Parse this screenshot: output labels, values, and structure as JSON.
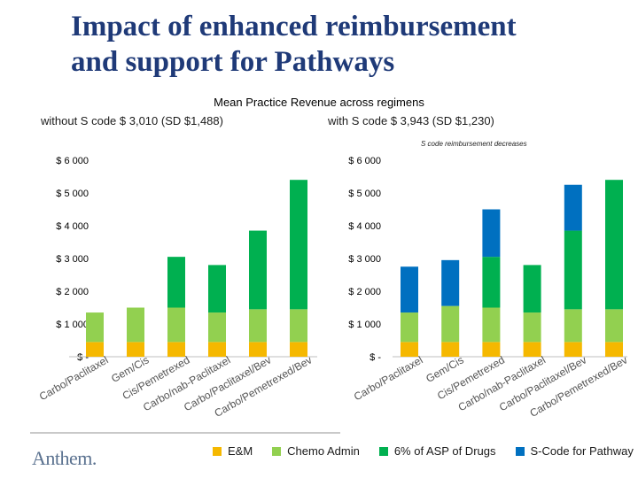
{
  "page": {
    "title_line1": "Impact of enhanced reimbursement",
    "title_line2": "and support for Pathways",
    "subtitle": "Mean Practice Revenue across regimens",
    "left_subtitle": "without S code $ 3,010 (SD $1,488)",
    "right_subtitle": "with S code $ 3,943 (SD $1,230)",
    "note": "S code reimbursement decreases",
    "logo": "Anthem."
  },
  "colors": {
    "em": "#f5b800",
    "chemo": "#92d050",
    "drugs": "#00b050",
    "scode": "#0070c0",
    "title": "#1f3a78"
  },
  "legend": [
    {
      "label": "E&M",
      "color": "#f5b800"
    },
    {
      "label": "Chemo Admin",
      "color": "#92d050"
    },
    {
      "label": "6% of ASP of Drugs",
      "color": "#00b050"
    },
    {
      "label": "S-Code for Pathway",
      "color": "#0070c0"
    }
  ],
  "chart_data": [
    {
      "type": "bar",
      "stacked": true,
      "title": "without S code $ 3,010 (SD $1,488)",
      "categories": [
        "Carbo/Paclitaxel",
        "Gem/Cis",
        "Cis/Pemetrexed",
        "Carbo/nab-Paclitaxel",
        "Carbo/Paclitaxel/Bev",
        "Carbo/Pemetrexed/Bev"
      ],
      "ylim": [
        0,
        6000
      ],
      "yticks": [
        0,
        1000,
        2000,
        3000,
        4000,
        5000,
        6000
      ],
      "ytick_labels": [
        "$ -",
        "$ 1 000",
        "$ 2 000",
        "$ 3 000",
        "$ 4 000",
        "$ 5 000",
        "$ 6 000"
      ],
      "series": [
        {
          "name": "E&M",
          "values": [
            450,
            450,
            450,
            450,
            450,
            450
          ]
        },
        {
          "name": "Chemo Admin",
          "values": [
            900,
            1050,
            1050,
            900,
            1000,
            1000
          ]
        },
        {
          "name": "6% of ASP of Drugs",
          "values": [
            0,
            0,
            1550,
            1450,
            2400,
            3950
          ]
        }
      ]
    },
    {
      "type": "bar",
      "stacked": true,
      "title": "with S code $ 3,943 (SD $1,230)",
      "categories": [
        "Carbo/Paclitaxel",
        "Gem/Cis",
        "Cis/Pemetrexed",
        "Carbo/nab-Paclitaxel",
        "Carbo/Paclitaxel/Bev",
        "Carbo/Pemetrexed/Bev"
      ],
      "ylim": [
        0,
        6000
      ],
      "yticks": [
        0,
        1000,
        2000,
        3000,
        4000,
        5000,
        6000
      ],
      "ytick_labels": [
        "$ -",
        "$ 1 000",
        "$ 2 000",
        "$ 3 000",
        "$ 4 000",
        "$ 5 000",
        "$ 6 000"
      ],
      "series": [
        {
          "name": "E&M",
          "values": [
            450,
            450,
            450,
            450,
            450,
            450
          ]
        },
        {
          "name": "Chemo Admin",
          "values": [
            900,
            1100,
            1050,
            900,
            1000,
            1000
          ]
        },
        {
          "name": "6% of ASP of Drugs",
          "values": [
            0,
            0,
            1550,
            1450,
            2400,
            3950
          ]
        },
        {
          "name": "S-Code for Pathway",
          "values": [
            1400,
            1400,
            1450,
            0,
            1400,
            0
          ]
        }
      ]
    }
  ]
}
